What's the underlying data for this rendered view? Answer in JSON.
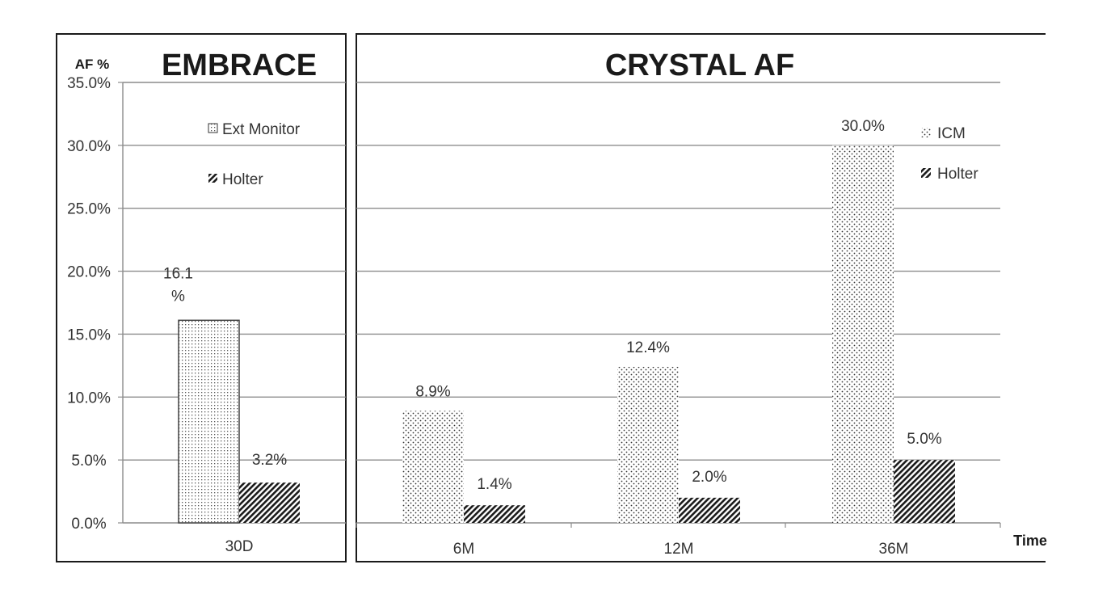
{
  "y_axis_label": "AF %",
  "x_axis_label": "Time",
  "y_ticks": [
    "0.0%",
    "5.0%",
    "10.0%",
    "15.0%",
    "20.0%",
    "25.0%",
    "30.0%",
    "35.0%"
  ],
  "colors": {
    "ink": "#1a1a1a",
    "grid": "#8c8c8c",
    "background": "#ffffff"
  },
  "chart_data": [
    {
      "type": "bar",
      "title": "EMBRACE",
      "categories": [
        "30D"
      ],
      "series": [
        {
          "name": "Ext Monitor",
          "pattern": "fine-dots",
          "values": [
            16.1
          ],
          "labels": [
            "16.1\n%"
          ]
        },
        {
          "name": "Holter",
          "pattern": "diagonal-hatch",
          "values": [
            3.2
          ],
          "labels": [
            "3.2%"
          ]
        }
      ],
      "ylim": [
        0,
        35
      ],
      "ylabel": "AF %",
      "xlabel": "",
      "grid": true,
      "legend": "top-right"
    },
    {
      "type": "bar",
      "title": "CRYSTAL AF",
      "categories": [
        "6M",
        "12M",
        "36M"
      ],
      "series": [
        {
          "name": "ICM",
          "pattern": "sparse-dots",
          "values": [
            8.9,
            12.4,
            30.0
          ],
          "labels": [
            "8.9%",
            "12.4%",
            "30.0%"
          ]
        },
        {
          "name": "Holter",
          "pattern": "diagonal-hatch",
          "values": [
            1.4,
            2.0,
            5.0
          ],
          "labels": [
            "1.4%",
            "2.0%",
            "5.0%"
          ]
        }
      ],
      "ylim": [
        0,
        35
      ],
      "ylabel": "",
      "xlabel": "Time",
      "grid": true,
      "legend": "top-right"
    }
  ]
}
